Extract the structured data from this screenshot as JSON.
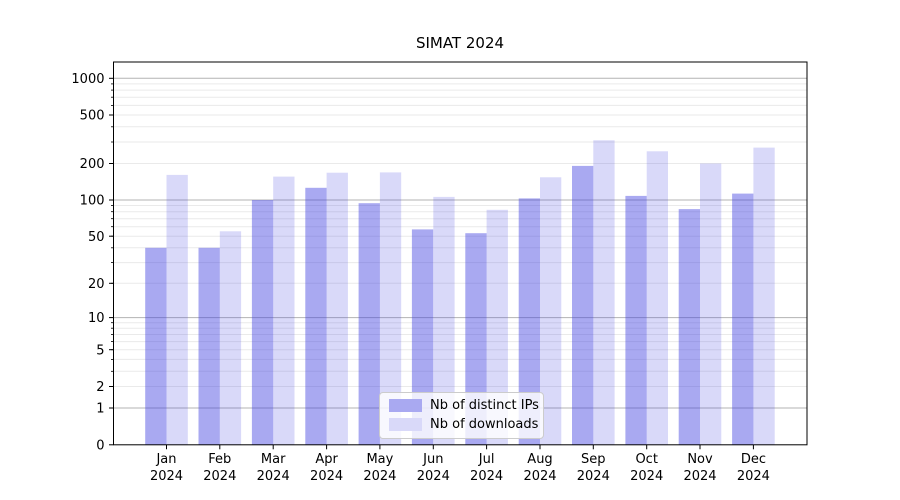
{
  "chart_data": {
    "type": "bar",
    "title": "SIMAT 2024",
    "months": [
      "Jan",
      "Feb",
      "Mar",
      "Apr",
      "May",
      "Jun",
      "Jul",
      "Aug",
      "Sep",
      "Oct",
      "Nov",
      "Dec"
    ],
    "year": "2024",
    "series": [
      {
        "key": "distinct_ips",
        "name": "Nb of distinct IPs",
        "values": [
          40,
          40,
          100,
          126,
          94,
          57,
          53,
          103,
          191,
          108,
          84,
          113
        ],
        "color": "rgba(64,64,224,0.45)",
        "swatch_color": "#a9a9f1"
      },
      {
        "key": "downloads",
        "name": "Nb of downloads",
        "values": [
          161,
          55,
          156,
          168,
          169,
          106,
          83,
          154,
          310,
          252,
          200,
          270
        ],
        "color": "rgba(64,64,224,0.2)",
        "swatch_color": "#d9d9f9"
      }
    ],
    "yscale": "log1p",
    "yticks": [
      0,
      1,
      2,
      5,
      10,
      20,
      50,
      100,
      200,
      500,
      1000
    ],
    "ylim": [
      0,
      1360
    ],
    "grid": "horizontal",
    "grid_major_color": "#b3b3b3",
    "grid_minor_color": "#eaeaea",
    "legend_position": "lower-center"
  }
}
